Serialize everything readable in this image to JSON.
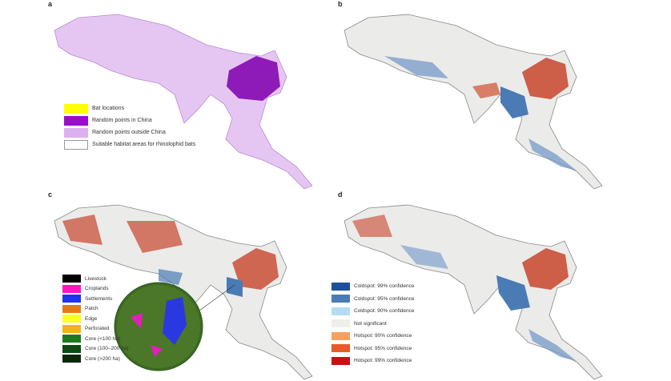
{
  "panels": {
    "a": {
      "label": "a",
      "legend": [
        {
          "label": "Bat locations",
          "color": "#ffff00"
        },
        {
          "label": "Random points in China",
          "color": "#9b0ec7"
        },
        {
          "label": "Random points outside China",
          "color": "#ddb0f0"
        },
        {
          "label": "Suitable habitat areas for rhinolophid bats",
          "color": "#ffffff"
        }
      ]
    },
    "b": {
      "label": "b"
    },
    "c": {
      "label": "c",
      "legend": [
        {
          "label": "Livestock",
          "color": "#000000"
        },
        {
          "label": "Croplands",
          "color": "#ff14c8"
        },
        {
          "label": "Settlements",
          "color": "#1e32f0"
        },
        {
          "label": "Patch",
          "color": "#e07a1a"
        },
        {
          "label": "Edge",
          "color": "#ffff1e"
        },
        {
          "label": "Perforated",
          "color": "#f0b414"
        },
        {
          "label": "Core (<100 ha)",
          "color": "#1e781e"
        },
        {
          "label": "Core (100–200 ha)",
          "color": "#0e4a12"
        },
        {
          "label": "Core (>200 ha)",
          "color": "#0a280a"
        }
      ]
    },
    "d": {
      "label": "d",
      "legend": [
        {
          "label": "Coldspot: 99% confidence",
          "color": "#1c4f9c"
        },
        {
          "label": "Coldspot: 95% confidence",
          "color": "#4a7bb5"
        },
        {
          "label": "Coldspot: 90% confidence",
          "color": "#b4dcf5"
        },
        {
          "label": "Not significant",
          "color": "#eeeeea"
        },
        {
          "label": "Hotspot: 90% confidence",
          "color": "#f5a060"
        },
        {
          "label": "Hotspot: 95% confidence",
          "color": "#e85a28"
        },
        {
          "label": "Hotspot: 99% confidence",
          "color": "#cc1010"
        }
      ]
    }
  }
}
